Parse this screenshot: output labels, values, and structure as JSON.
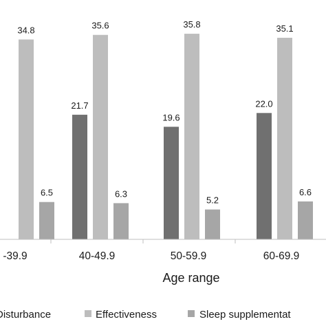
{
  "chart_data": {
    "type": "bar",
    "xlabel": "Age range",
    "categories": [
      "-39.9",
      "40-49.9",
      "50-59.9",
      "60-69.9"
    ],
    "ylim": [
      0,
      40
    ],
    "grid": false,
    "legend_position": "bottom",
    "series": [
      {
        "name": "Disturbance",
        "color": "#707070",
        "values": [
          null,
          21.7,
          19.6,
          22.0
        ],
        "labels": [
          "",
          "21.7",
          "19.6",
          "22.0"
        ]
      },
      {
        "name": "Effectiveness",
        "color": "#bdbdbd",
        "values": [
          34.8,
          35.6,
          35.8,
          35.1
        ],
        "labels": [
          "34.8",
          "35.6",
          "35.8",
          "35.1"
        ]
      },
      {
        "name": "Sleep supplementat",
        "color": "#a6a6a6",
        "values": [
          6.5,
          6.3,
          5.2,
          6.6
        ],
        "labels": [
          "6.5",
          "6.3",
          "5.2",
          "6.6"
        ]
      }
    ]
  }
}
